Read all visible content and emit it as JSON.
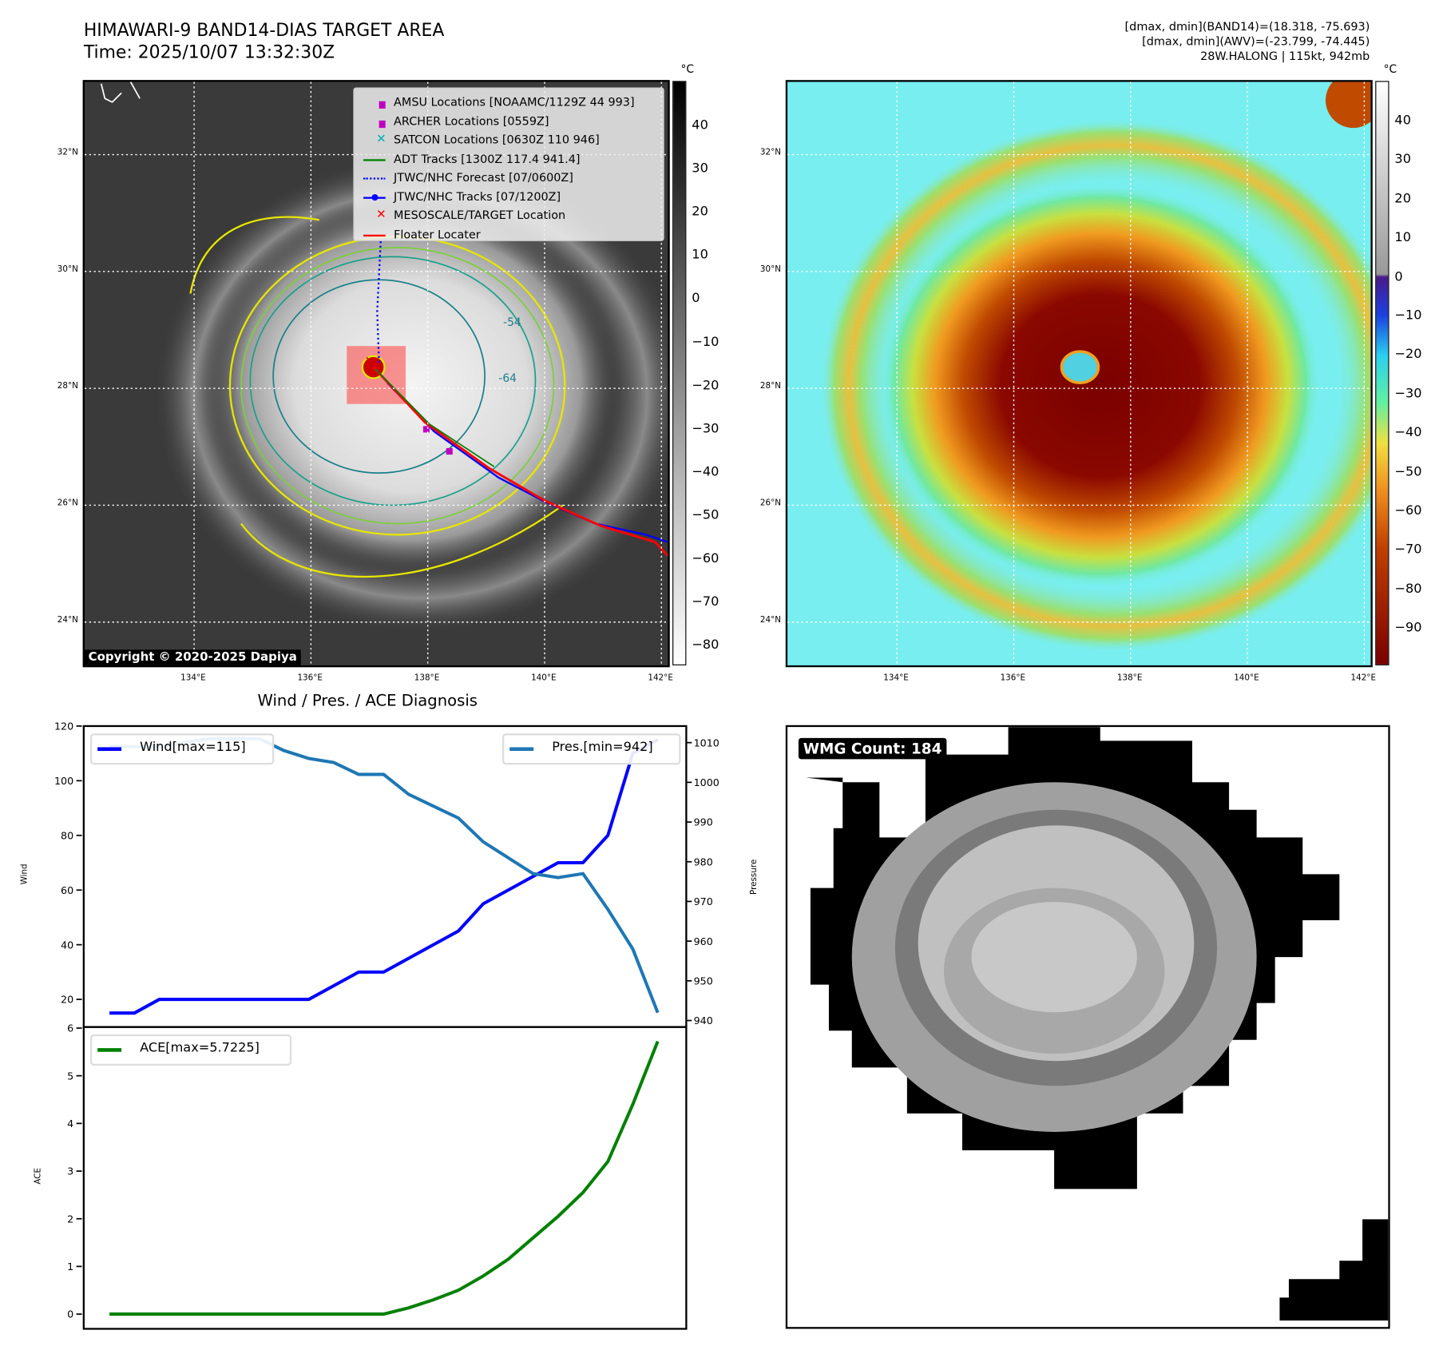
{
  "header": {
    "title": "HIMAWARI-9 BAND14-DIAS TARGET AREA",
    "time": "Time: 2025/10/07 13:32:30Z",
    "info_line1": "[dmax, dmin](BAND14)=(18.318, -75.693)",
    "info_line2": "[dmax, dmin](AWV)=(-23.799, -74.445)",
    "info_line3": "28W.HALONG | 115kt, 942mb"
  },
  "map": {
    "lon_ticks": [
      "134°E",
      "136°E",
      "138°E",
      "140°E",
      "142°E"
    ],
    "lat_ticks": [
      "32°N",
      "30°N",
      "28°N",
      "26°N",
      "24°N"
    ],
    "copyright": "Copyright © 2020-2025 Dapiya",
    "contour_labels": [
      "-64",
      "-54"
    ],
    "legend": [
      {
        "label": "AMSU Locations [NOAAMC/1129Z 44 993]",
        "icon": "square-marker",
        "color": "#c000c0"
      },
      {
        "label": "ARCHER Locations [0559Z]",
        "icon": "square-marker",
        "color": "#c000c0"
      },
      {
        "label": "SATCON Locations [0630Z 110 946]",
        "icon": "x-marker",
        "color": "#00b0b0"
      },
      {
        "label": "ADT Tracks [1300Z 117.4 941.4]",
        "icon": "solid-line",
        "color": "#008000"
      },
      {
        "label": "JTWC/NHC Forecast [07/0600Z]",
        "icon": "dotted-line",
        "color": "#0000ff"
      },
      {
        "label": "JTWC/NHC Tracks [07/1200Z]",
        "icon": "line-dot",
        "color": "#0000ff"
      },
      {
        "label": "MESOSCALE/TARGET Location",
        "icon": "x-marker",
        "color": "#ff0000"
      },
      {
        "label": "Floater Locater",
        "icon": "solid-line",
        "color": "#ff0000"
      }
    ]
  },
  "colorbar_left": {
    "unit": "°C",
    "ticks": [
      "40",
      "30",
      "20",
      "10",
      "0",
      "−10",
      "−20",
      "−30",
      "−40",
      "−50",
      "−60",
      "−70",
      "−80"
    ]
  },
  "colorbar_right": {
    "unit": "°C",
    "ticks": [
      "40",
      "30",
      "20",
      "10",
      "0",
      "−10",
      "−20",
      "−30",
      "−40",
      "−50",
      "−60",
      "−70",
      "−80",
      "−90"
    ]
  },
  "wmg": {
    "label": "WMG Count: 184"
  },
  "chart_data": [
    {
      "type": "line",
      "title": "Wind / Pres. / ACE Diagnosis",
      "ylabel": "Wind",
      "y2label": "Pressure",
      "ylim": [
        10,
        120
      ],
      "y2lim": [
        937.5,
        1014
      ],
      "yticks": [
        "120",
        "100",
        "80",
        "60",
        "40",
        "20"
      ],
      "y2ticks": [
        "1010",
        "1000",
        "990",
        "980",
        "970",
        "960",
        "950",
        "940"
      ],
      "series": [
        {
          "name": "Wind[max=115]",
          "color": "#0000ff",
          "axis": "left",
          "values": [
            15,
            15,
            20,
            20,
            20,
            20,
            20,
            20,
            20,
            25,
            30,
            30,
            35,
            40,
            45,
            55,
            60,
            65,
            70,
            70,
            80,
            110,
            115
          ]
        },
        {
          "name": "Pres.[min=942]",
          "color": "#1f77b4",
          "axis": "right",
          "values": [
            1009,
            1009,
            1009,
            1010,
            1011,
            1011,
            1011,
            1008,
            1006,
            1005,
            1002,
            1002,
            997,
            994,
            991,
            985,
            981,
            977,
            976,
            977,
            968,
            958,
            942
          ]
        }
      ]
    },
    {
      "type": "line",
      "ylabel": "ACE",
      "ylim": [
        -0.3,
        6
      ],
      "yticks": [
        "6",
        "5",
        "4",
        "3",
        "2",
        "1",
        "0"
      ],
      "series": [
        {
          "name": "ACE[max=5.7225]",
          "color": "#008000",
          "values": [
            0,
            0,
            0,
            0,
            0,
            0,
            0,
            0,
            0,
            0,
            0,
            0,
            0.13,
            0.3,
            0.5,
            0.8,
            1.15,
            1.6,
            2.05,
            2.55,
            3.2,
            4.4,
            5.7225
          ]
        }
      ]
    }
  ]
}
